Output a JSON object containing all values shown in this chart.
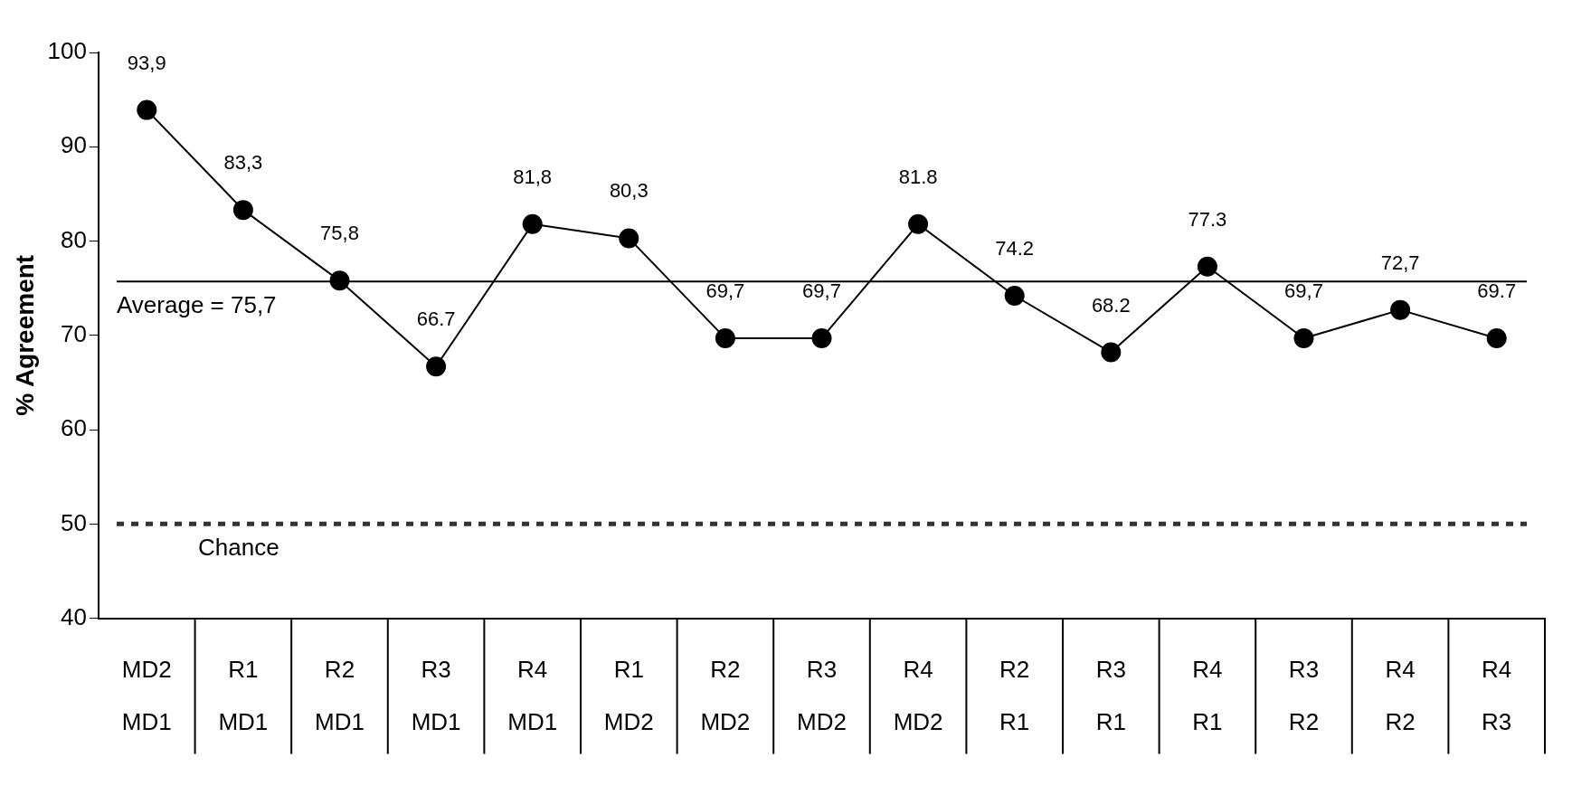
{
  "chart_data": {
    "type": "line",
    "ylabel": "% Agreement",
    "categories": [
      "MD2\nMD1",
      "R1\nMD1",
      "R2\nMD1",
      "R3\nMD1",
      "R4\nMD1",
      "R1\nMD2",
      "R2\nMD2",
      "R3\nMD2",
      "R4\nMD2",
      "R2\nR1",
      "R3\nR1",
      "R4\nR1",
      "R3\nR2",
      "R4\nR2",
      "R4\nR3"
    ],
    "series": [
      {
        "color": "#000000",
        "values": [
          93.9,
          83.3,
          75.8,
          66.7,
          81.8,
          80.3,
          69.7,
          69.7,
          81.8,
          74.2,
          68.2,
          77.3,
          69.7,
          72.7,
          69.7
        ],
        "value_labels": [
          "93,9",
          "83,3",
          "75,8",
          "66.7",
          "81,8",
          "80,3",
          "69,7",
          "69,7",
          "81.8",
          "74.2",
          "68.2",
          "77.3",
          "69,7",
          "72,7",
          "69.7"
        ]
      }
    ],
    "ylim": [
      40,
      100
    ],
    "yticks": [
      40,
      50,
      60,
      70,
      80,
      90,
      100
    ],
    "grid": false,
    "legend": false,
    "marker": "circle",
    "line_style": "solid",
    "ref_lines": [
      {
        "axis": "y",
        "value": 75.7,
        "label": "Average = 75,7",
        "color": "#000000",
        "line_style": "solid"
      },
      {
        "axis": "y",
        "value": 50,
        "label": "Chance",
        "color": "#333333",
        "line_style": "dotted"
      }
    ]
  }
}
